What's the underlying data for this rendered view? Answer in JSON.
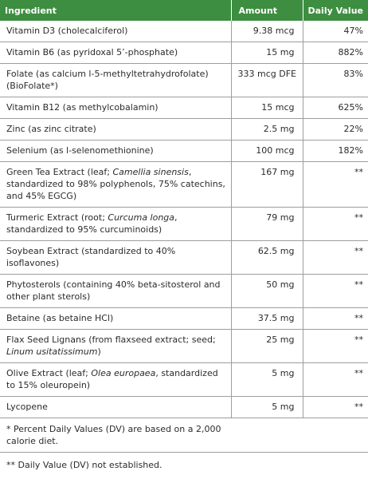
{
  "header": {
    "ingredient": "Ingredient",
    "amount": "Amount",
    "daily_value": "Daily Value"
  },
  "rows": [
    {
      "pre": "Vitamin D3 (cholecalciferol)",
      "italic": "",
      "post": "",
      "amount": "9.38 mcg",
      "dv": "47%"
    },
    {
      "pre": "Vitamin B6 (as pyridoxal 5’-phosphate)",
      "italic": "",
      "post": "",
      "amount": "15 mg",
      "dv": "882%"
    },
    {
      "pre": "Folate (as calcium l-5-methyltetrahydrofolate) (BioFolate*)",
      "italic": "",
      "post": "",
      "amount": "333 mcg DFE",
      "dv": "83%"
    },
    {
      "pre": "Vitamin B12 (as methylcobalamin)",
      "italic": "",
      "post": "",
      "amount": "15 mcg",
      "dv": "625%"
    },
    {
      "pre": "Zinc (as zinc citrate)",
      "italic": "",
      "post": "",
      "amount": "2.5 mg",
      "dv": "22%"
    },
    {
      "pre": "Selenium (as l-selenomethionine)",
      "italic": "",
      "post": "",
      "amount": "100 mcg",
      "dv": "182%"
    },
    {
      "pre": "Green Tea Extract (leaf; ",
      "italic": "Camellia sinensis",
      "post": ", standardized to 98% polyphenols, 75% catechins, and 45% EGCG)",
      "amount": "167 mg",
      "dv": "**"
    },
    {
      "pre": "Turmeric Extract (root; ",
      "italic": "Curcuma longa",
      "post": ", standardized to 95% curcuminoids)",
      "amount": "79 mg",
      "dv": "**"
    },
    {
      "pre": "Soybean Extract (standardized to 40% isoflavones)",
      "italic": "",
      "post": "",
      "amount": "62.5 mg",
      "dv": "**"
    },
    {
      "pre": "Phytosterols (containing 40% beta-sitosterol and other plant sterols)",
      "italic": "",
      "post": "",
      "amount": "50 mg",
      "dv": "**"
    },
    {
      "pre": "Betaine (as betaine HCl)",
      "italic": "",
      "post": "",
      "amount": "37.5 mg",
      "dv": "**"
    },
    {
      "pre": "Flax Seed Lignans (from flaxseed extract; seed; ",
      "italic": "Linum usitatissimum",
      "post": ")",
      "amount": "25 mg",
      "dv": "**"
    },
    {
      "pre": "Olive Extract (leaf; ",
      "italic": "Olea europaea",
      "post": ", standardized to 15% oleuropein)",
      "amount": "5 mg",
      "dv": "**"
    },
    {
      "pre": "Lycopene",
      "italic": "",
      "post": "",
      "amount": "5 mg",
      "dv": "**"
    }
  ],
  "notes": {
    "percent_dv": "* Percent Daily Values (DV) are based on a 2,000 calorie diet.",
    "not_established": "** Daily Value (DV) not established."
  },
  "colors": {
    "header_bg": "#3e8e41",
    "header_text": "#ffffff",
    "rule": "#9e9e9e"
  }
}
